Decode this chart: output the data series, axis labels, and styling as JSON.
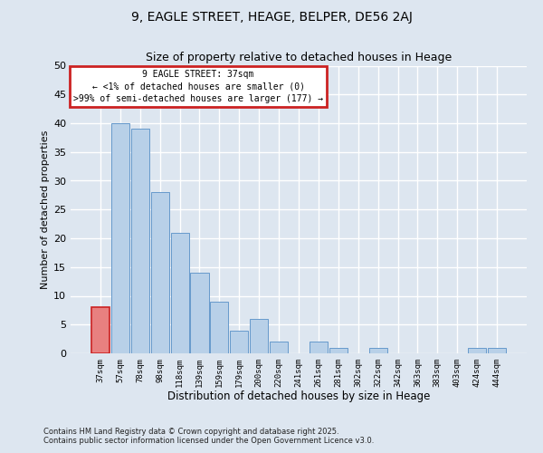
{
  "title": "9, EAGLE STREET, HEAGE, BELPER, DE56 2AJ",
  "subtitle": "Size of property relative to detached houses in Heage",
  "xlabel": "Distribution of detached houses by size in Heage",
  "ylabel": "Number of detached properties",
  "categories": [
    "37sqm",
    "57sqm",
    "78sqm",
    "98sqm",
    "118sqm",
    "139sqm",
    "159sqm",
    "179sqm",
    "200sqm",
    "220sqm",
    "241sqm",
    "261sqm",
    "281sqm",
    "302sqm",
    "322sqm",
    "342sqm",
    "363sqm",
    "383sqm",
    "403sqm",
    "424sqm",
    "444sqm"
  ],
  "values": [
    8,
    40,
    39,
    28,
    21,
    14,
    9,
    4,
    6,
    2,
    0,
    2,
    1,
    0,
    1,
    0,
    0,
    0,
    0,
    1,
    1
  ],
  "highlight_index": 0,
  "bar_color_normal": "#b8d0e8",
  "bar_color_highlight": "#e88080",
  "bar_edgecolor": "#6699cc",
  "bar_highlight_edgecolor": "#cc2222",
  "ylim": [
    0,
    50
  ],
  "yticks": [
    0,
    5,
    10,
    15,
    20,
    25,
    30,
    35,
    40,
    45,
    50
  ],
  "annotation_box_text": "9 EAGLE STREET: 37sqm\n← <1% of detached houses are smaller (0)\n>99% of semi-detached houses are larger (177) →",
  "annotation_box_facecolor": "#ffffff",
  "annotation_box_edgecolor": "#cc2222",
  "footer_line1": "Contains HM Land Registry data © Crown copyright and database right 2025.",
  "footer_line2": "Contains public sector information licensed under the Open Government Licence v3.0.",
  "background_color": "#dde6f0",
  "grid_color": "#ffffff",
  "fig_width": 6.0,
  "fig_height": 5.0,
  "dpi": 100
}
